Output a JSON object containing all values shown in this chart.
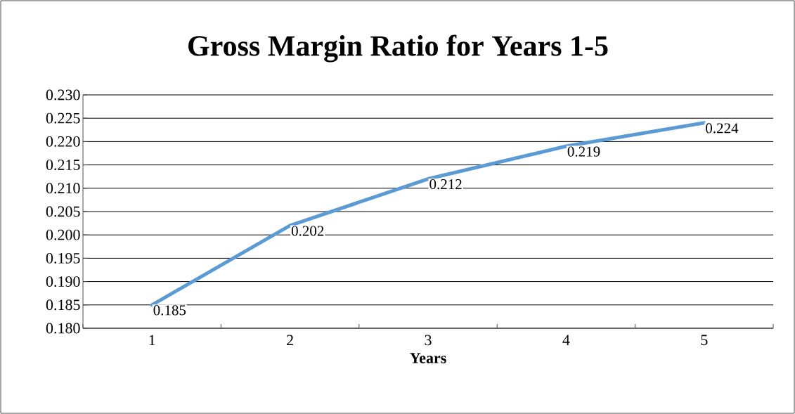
{
  "chart_data": {
    "type": "line",
    "title": "Gross Margin Ratio for Years 1-5",
    "xlabel": "Years",
    "categories": [
      "1",
      "2",
      "3",
      "4",
      "5"
    ],
    "series": [
      {
        "color": "#5b9bd5",
        "values": [
          0.185,
          0.202,
          0.212,
          0.219,
          0.224
        ]
      }
    ],
    "ylim": [
      0.18,
      0.23
    ],
    "yticks": [
      {
        "value": 0.18,
        "label": "0.180"
      },
      {
        "value": 0.185,
        "label": "0.185"
      },
      {
        "value": 0.19,
        "label": "0.190"
      },
      {
        "value": 0.195,
        "label": "0.195"
      },
      {
        "value": 0.2,
        "label": "0.200"
      },
      {
        "value": 0.205,
        "label": "0.205"
      },
      {
        "value": 0.21,
        "label": "0.210"
      },
      {
        "value": 0.215,
        "label": "0.215"
      },
      {
        "value": 0.22,
        "label": "0.220"
      },
      {
        "value": 0.225,
        "label": "0.225"
      },
      {
        "value": 0.23,
        "label": "0.230"
      }
    ],
    "grid": "y",
    "data_labels": true
  }
}
